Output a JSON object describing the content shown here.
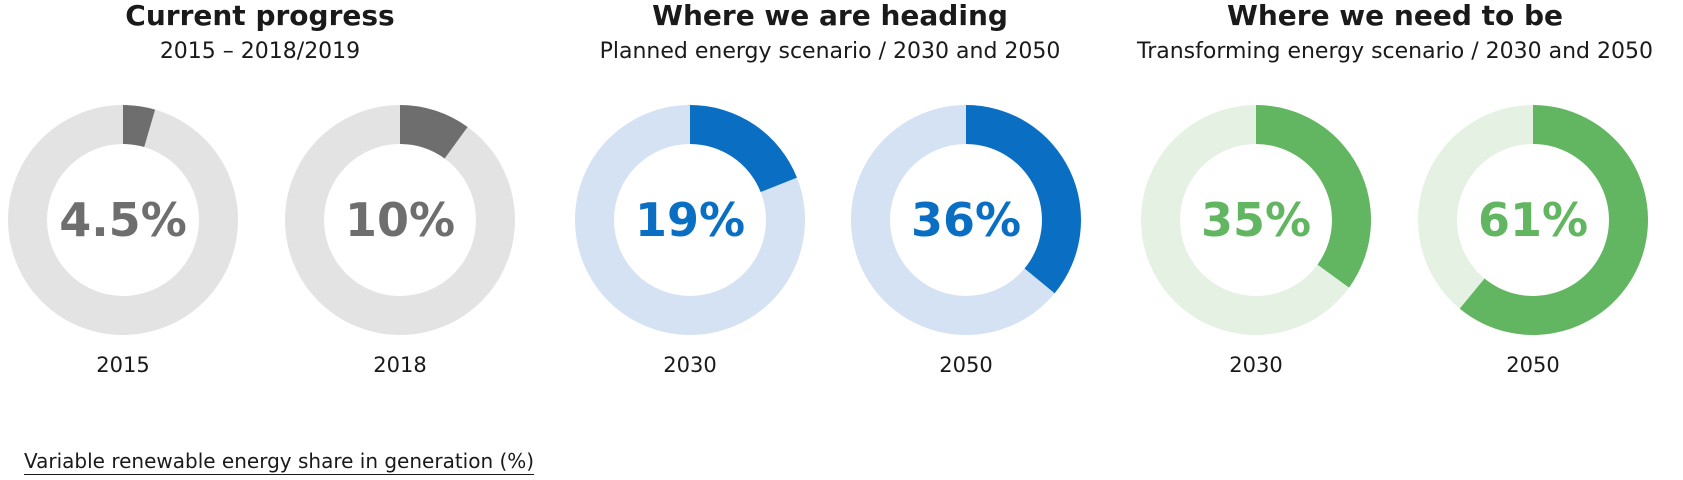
{
  "groups": [
    {
      "title": "Current progress",
      "subtitle": "2015 – 2018/2019"
    },
    {
      "title": "Where we are heading",
      "subtitle": "Planned energy scenario / 2030 and 2050"
    },
    {
      "title": "Where we need to be",
      "subtitle": "Transforming energy scenario / 2030 and 2050"
    }
  ],
  "chart_data": {
    "type": "pie",
    "variant": "donut",
    "series": [
      {
        "group": 0,
        "year": "2015",
        "label": "4.5%",
        "value": 4.5,
        "color": "#6e6e6e",
        "track": "#e3e3e3"
      },
      {
        "group": 0,
        "year": "2018",
        "label": "10%",
        "value": 10,
        "color": "#6e6e6e",
        "track": "#e3e3e3"
      },
      {
        "group": 1,
        "year": "2030",
        "label": "19%",
        "value": 19,
        "color": "#0a6fc2",
        "track": "#d4e2f3"
      },
      {
        "group": 1,
        "year": "2050",
        "label": "36%",
        "value": 36,
        "color": "#0a6fc2",
        "track": "#d4e2f3"
      },
      {
        "group": 2,
        "year": "2030",
        "label": "35%",
        "value": 35,
        "color": "#62b662",
        "track": "#e5f2e3"
      },
      {
        "group": 2,
        "year": "2050",
        "label": "61%",
        "value": 61,
        "color": "#62b662",
        "track": "#e5f2e3"
      }
    ]
  },
  "footer": {
    "caption": "Variable renewable energy share in generation (%)"
  }
}
